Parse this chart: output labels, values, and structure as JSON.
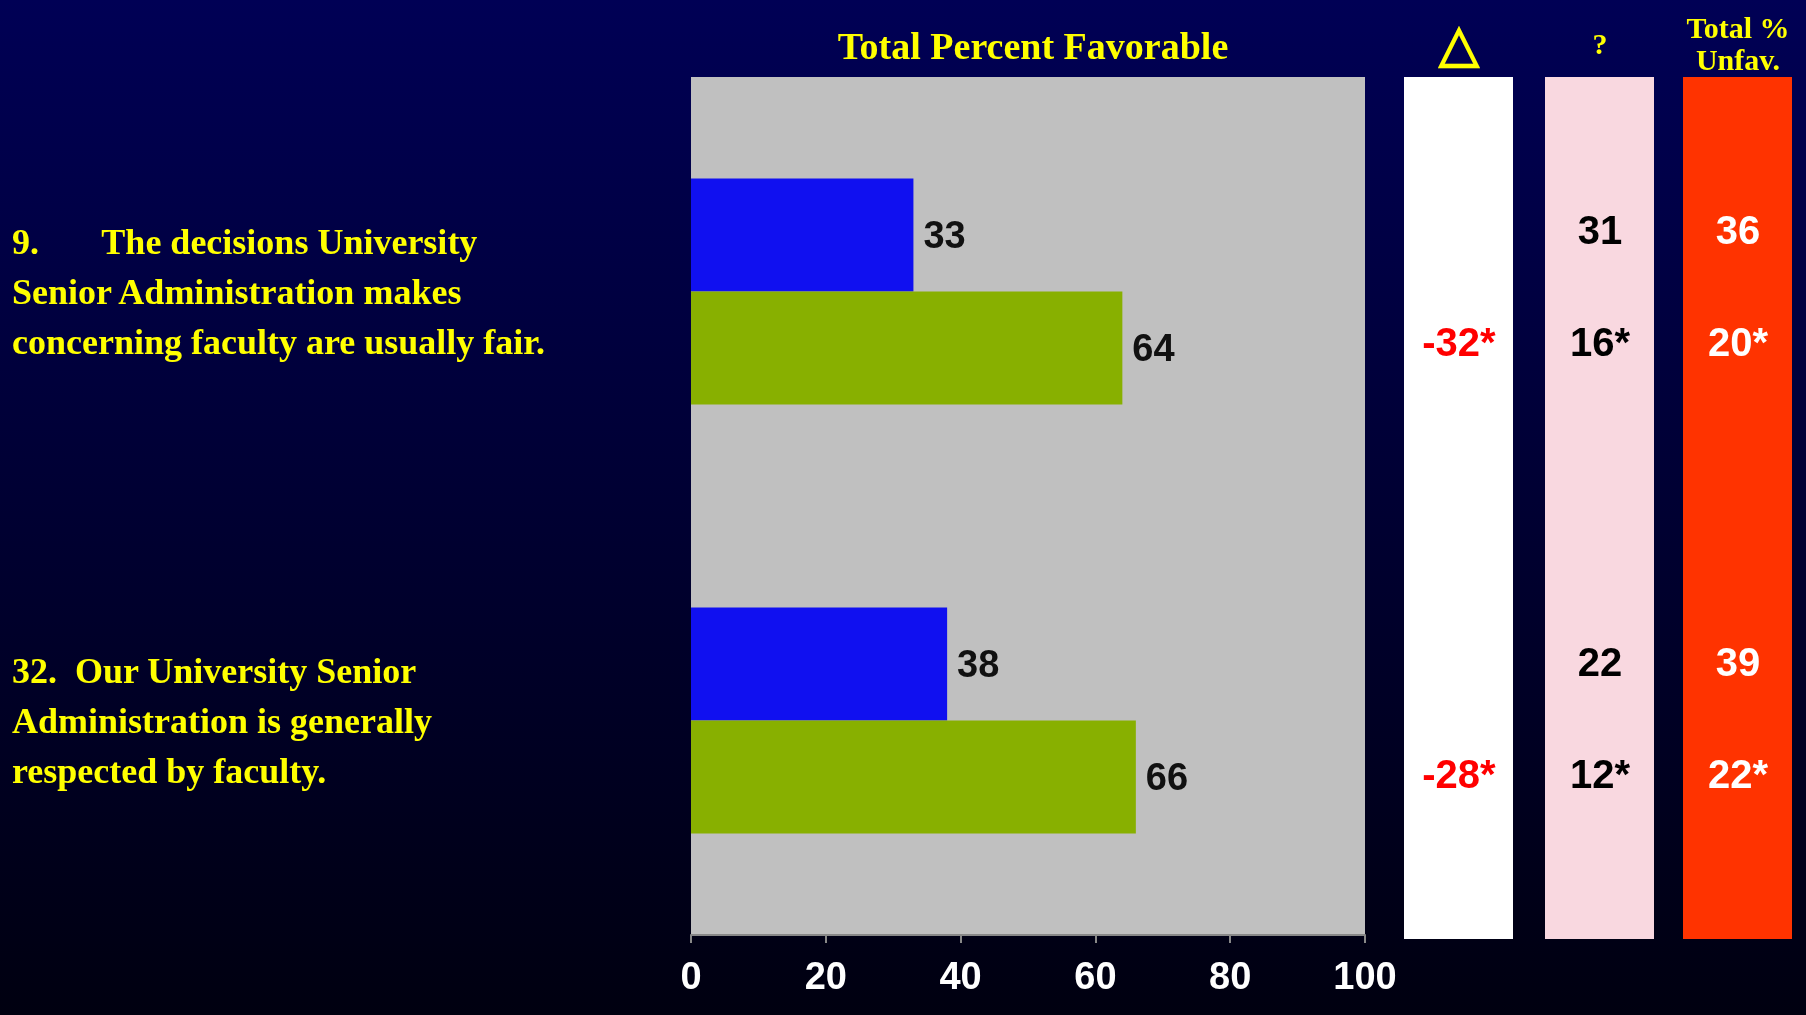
{
  "chart_data": {
    "type": "bar",
    "orientation": "horizontal",
    "title": "Total Percent Favorable",
    "categories": [
      "9.       The decisions University Senior Administration makes concerning faculty are usually fair.",
      "32.  Our University Senior Administration is generally respected by faculty."
    ],
    "series": [
      {
        "color": "#1010f0",
        "values": [
          33,
          38
        ]
      },
      {
        "color": "#88b000",
        "values": [
          64,
          66
        ]
      }
    ],
    "xlim": [
      0,
      100
    ],
    "xticks": [
      0,
      20,
      40,
      60,
      80,
      100
    ],
    "grid": false,
    "data_labels": true,
    "annotations": [
      "△",
      "?",
      "Total % Unfav.",
      "31",
      "36",
      "-32*",
      "16*",
      "20*",
      "22",
      "39",
      "-28*",
      "12*",
      "22*"
    ]
  }
}
